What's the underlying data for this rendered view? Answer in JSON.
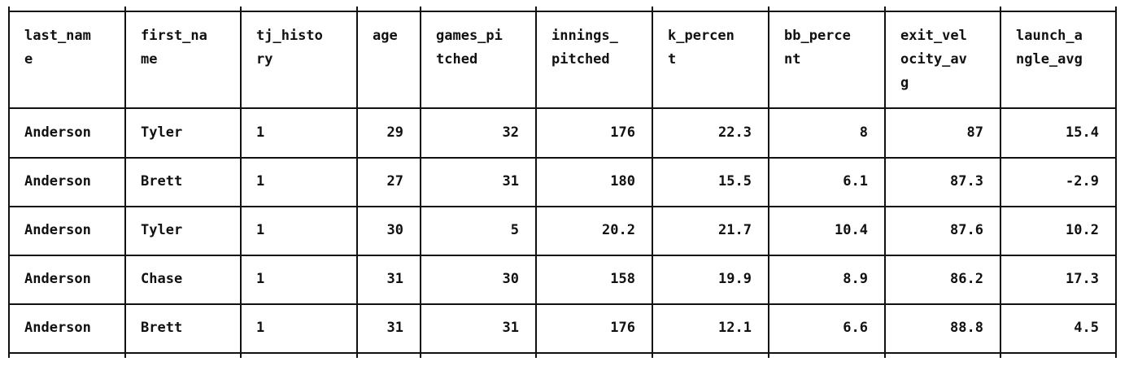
{
  "table": {
    "columns": [
      "last_name",
      "first_name",
      "tj_history",
      "age",
      "games_pitched",
      "innings_pitched",
      "k_percent",
      "bb_percent",
      "exit_velocity_avg",
      "launch_angle_avg"
    ],
    "header_wrapped": [
      [
        "last_nam",
        "e"
      ],
      [
        "first_na",
        "me"
      ],
      [
        "tj_histo",
        "ry"
      ],
      [
        "age"
      ],
      [
        "games_pi",
        "tched"
      ],
      [
        "innings_",
        "pitched"
      ],
      [
        "k_percen",
        "t"
      ],
      [
        "bb_perce",
        "nt"
      ],
      [
        "exit_vel",
        "ocity_av",
        "g"
      ],
      [
        "launch_a",
        "ngle_avg"
      ]
    ],
    "rows": [
      [
        "Anderson",
        "Tyler",
        "1",
        "29",
        "32",
        "176",
        "22.3",
        "8",
        "87",
        "15.4"
      ],
      [
        "Anderson",
        "Brett",
        "1",
        "27",
        "31",
        "180",
        "15.5",
        "6.1",
        "87.3",
        "-2.9"
      ],
      [
        "Anderson",
        "Tyler",
        "1",
        "30",
        "5",
        "20.2",
        "21.7",
        "10.4",
        "87.6",
        "10.2"
      ],
      [
        "Anderson",
        "Chase",
        "1",
        "31",
        "30",
        "158",
        "19.9",
        "8.9",
        "86.2",
        "17.3"
      ],
      [
        "Anderson",
        "Brett",
        "1",
        "31",
        "31",
        "176",
        "12.1",
        "6.6",
        "88.8",
        "4.5"
      ]
    ]
  }
}
